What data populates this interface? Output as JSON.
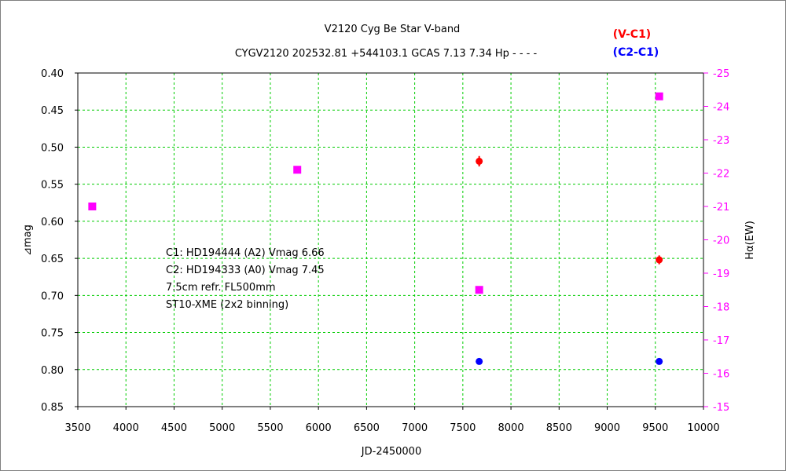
{
  "chart_data": {
    "type": "scatter",
    "title": "V2120 Cyg    Be Star    V-band",
    "subtitle": "CYGV2120 202532.81 +544103.1 GCAS 7.13 7.34 Hp - - - -",
    "xlabel": "JD-2450000",
    "ylabel_left": "⊿mag",
    "ylabel_right": "Hα(EW)",
    "xlim": [
      3500,
      10000
    ],
    "ylim_left": [
      0.4,
      0.85
    ],
    "ylim_left_inverted": true,
    "ylim_right": [
      -25,
      -15
    ],
    "ylim_right_inverted": false,
    "x_ticks": [
      "3500",
      "4000",
      "4500",
      "5000",
      "5500",
      "6000",
      "6500",
      "7000",
      "7500",
      "8000",
      "8500",
      "9000",
      "9500",
      "10000"
    ],
    "y_left_ticks": [
      "0.40",
      "0.45",
      "0.50",
      "0.55",
      "0.60",
      "0.65",
      "0.70",
      "0.75",
      "0.80",
      "0.85"
    ],
    "y_right_ticks": [
      "-25",
      "-24",
      "-23",
      "-22",
      "-21",
      "-20",
      "-19",
      "-18",
      "-17",
      "-16",
      "-15"
    ],
    "grid": true,
    "legend_placement": "top-right",
    "series": [
      {
        "name": "(V-C1)",
        "axis": "left",
        "color": "#ff0000",
        "marker": "circle-errorbar",
        "points": [
          {
            "x": 7670,
            "y": 0.519,
            "err": 0.007
          },
          {
            "x": 9540,
            "y": 0.652,
            "err": 0.006
          }
        ]
      },
      {
        "name": "(C2-C1)",
        "axis": "left",
        "color": "#0000ff",
        "marker": "circle",
        "points": [
          {
            "x": 7670,
            "y": 0.789
          },
          {
            "x": 9540,
            "y": 0.789
          }
        ]
      },
      {
        "name": "",
        "axis": "right",
        "color": "#ff00ff",
        "marker": "square",
        "points": [
          {
            "x": 3650,
            "y": -21.0
          },
          {
            "x": 5780,
            "y": -22.1
          },
          {
            "x": 7670,
            "y": -18.5
          },
          {
            "x": 9540,
            "y": -24.3
          }
        ]
      }
    ],
    "annotations": [
      "C1: HD194444 (A2) Vmag 6.66",
      "C2: HD194333 (A0) Vmag 7.45",
      "7.5cm refr. FL500mm",
      "ST10-XME (2x2 binning)"
    ]
  }
}
